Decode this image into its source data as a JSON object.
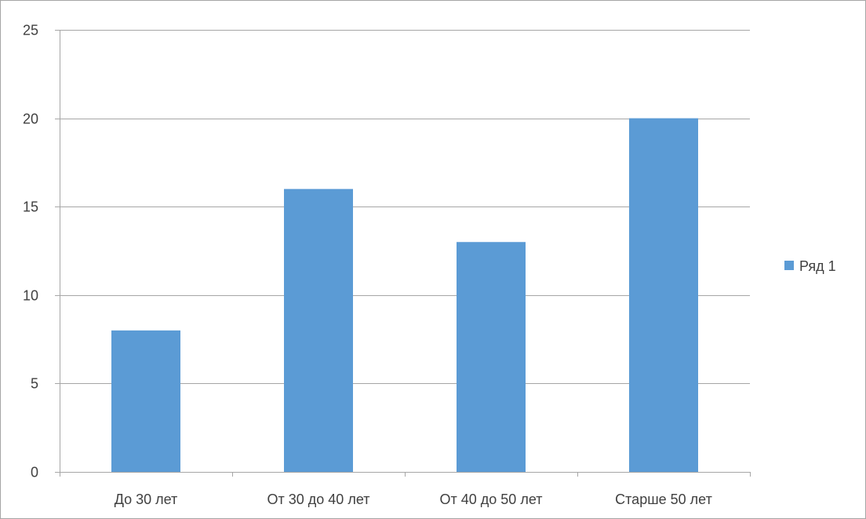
{
  "chart_data": {
    "type": "bar",
    "title": "",
    "xlabel": "",
    "ylabel": "",
    "categories": [
      "До 30 лет",
      "От 30 до 40 лет",
      "От 40 до 50 лет",
      "Старше 50 лет"
    ],
    "series": [
      {
        "name": "Ряд 1",
        "values": [
          8,
          16,
          13,
          20
        ],
        "color": "#5b9bd5"
      }
    ],
    "ylim": [
      0,
      25
    ],
    "yticks": [
      0,
      5,
      10,
      15,
      20,
      25
    ],
    "grid": true,
    "legend_position": "right",
    "colors": {
      "gridline": "#a6a6a6",
      "axis": "#a6a6a6",
      "text": "#404040",
      "frame": "#a6a6a6"
    }
  }
}
